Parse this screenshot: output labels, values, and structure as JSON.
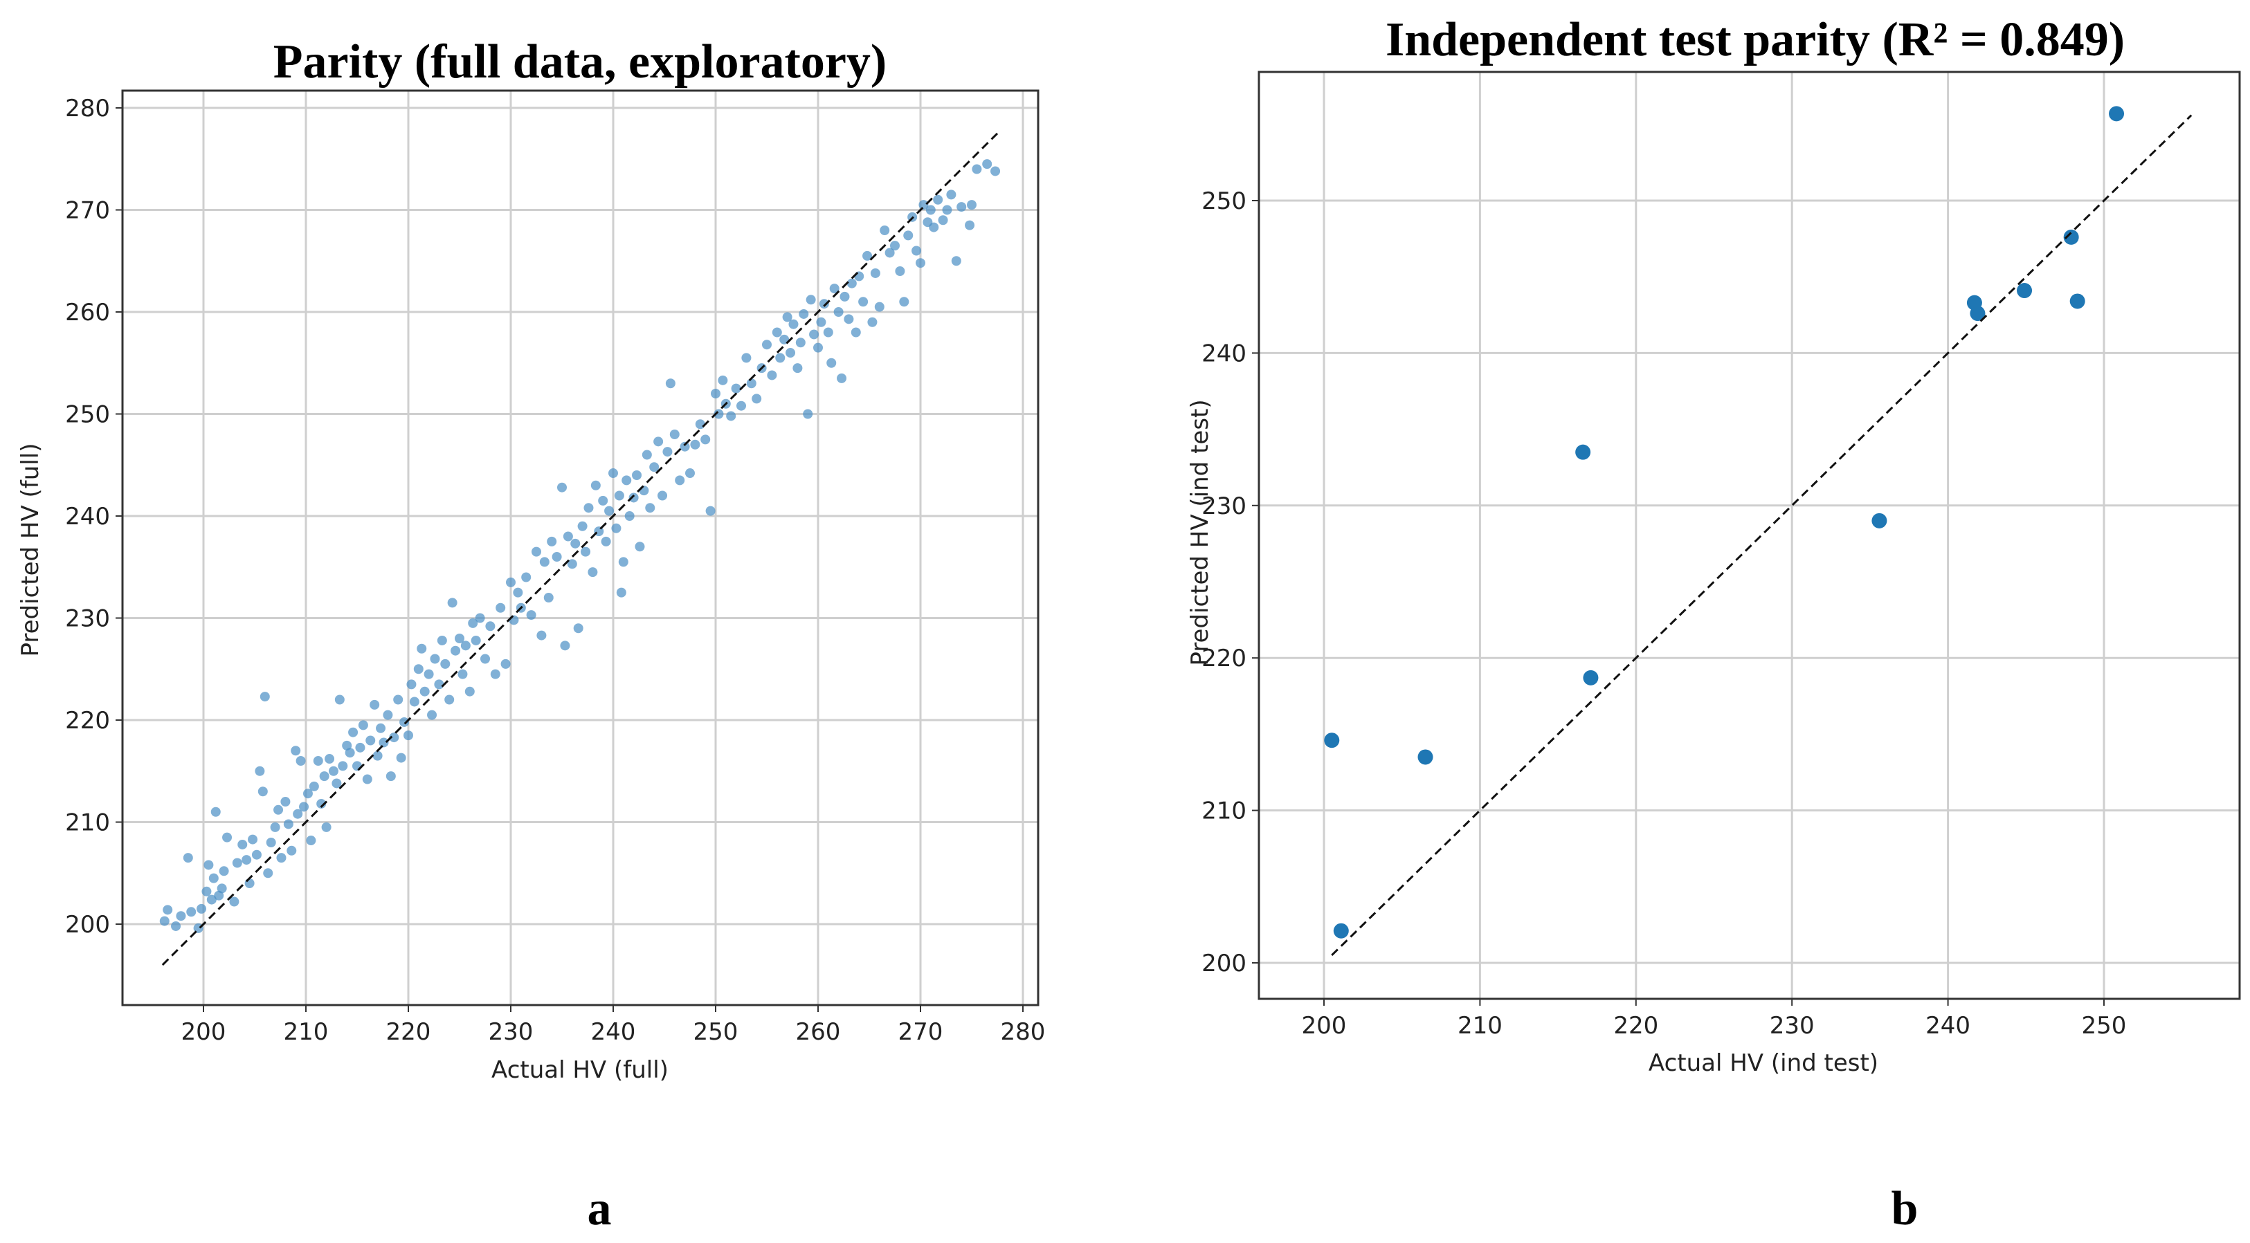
{
  "chart_data": [
    {
      "type": "scatter",
      "panel_label": "a",
      "title": "Parity (full data, exploratory)",
      "xlabel": "Actual HV (full)",
      "ylabel": "Predicted HV (full)",
      "xlim": [
        192,
        282
      ],
      "ylim": [
        192,
        282
      ],
      "xticks": [
        200,
        210,
        220,
        230,
        240,
        250,
        260,
        270,
        280
      ],
      "yticks": [
        200,
        210,
        220,
        230,
        240,
        250,
        260,
        270,
        280
      ],
      "grid": true,
      "reference_line": [
        [
          196,
          196
        ],
        [
          277.5,
          277.5
        ]
      ],
      "marker_color": "#4a8fc4",
      "points": [
        [
          196.2,
          200.3
        ],
        [
          196.5,
          201.4
        ],
        [
          197.3,
          199.8
        ],
        [
          197.8,
          200.8
        ],
        [
          198.5,
          206.5
        ],
        [
          198.8,
          201.2
        ],
        [
          199.5,
          199.6
        ],
        [
          199.8,
          201.5
        ],
        [
          200.3,
          203.2
        ],
        [
          200.5,
          205.8
        ],
        [
          200.8,
          202.4
        ],
        [
          201.0,
          204.5
        ],
        [
          201.2,
          211.0
        ],
        [
          201.5,
          202.8
        ],
        [
          201.8,
          203.5
        ],
        [
          202.0,
          205.2
        ],
        [
          202.3,
          208.5
        ],
        [
          203.0,
          202.2
        ],
        [
          203.3,
          206.0
        ],
        [
          203.8,
          207.8
        ],
        [
          204.2,
          206.3
        ],
        [
          204.5,
          204.0
        ],
        [
          204.8,
          208.3
        ],
        [
          205.2,
          206.8
        ],
        [
          205.5,
          215.0
        ],
        [
          205.8,
          213.0
        ],
        [
          206.0,
          222.3
        ],
        [
          206.3,
          205.0
        ],
        [
          206.6,
          208.0
        ],
        [
          207.0,
          209.5
        ],
        [
          207.3,
          211.2
        ],
        [
          207.6,
          206.5
        ],
        [
          208.0,
          212.0
        ],
        [
          208.3,
          209.8
        ],
        [
          208.6,
          207.2
        ],
        [
          209.0,
          217.0
        ],
        [
          209.2,
          210.8
        ],
        [
          209.5,
          216.0
        ],
        [
          209.8,
          211.5
        ],
        [
          210.2,
          212.8
        ],
        [
          210.5,
          208.2
        ],
        [
          210.8,
          213.5
        ],
        [
          211.2,
          216.0
        ],
        [
          211.5,
          211.8
        ],
        [
          211.8,
          214.5
        ],
        [
          212.0,
          209.5
        ],
        [
          212.3,
          216.2
        ],
        [
          212.7,
          215.0
        ],
        [
          213.0,
          213.8
        ],
        [
          213.3,
          222.0
        ],
        [
          213.6,
          215.5
        ],
        [
          214.0,
          217.5
        ],
        [
          214.3,
          216.8
        ],
        [
          214.6,
          218.8
        ],
        [
          215.0,
          215.5
        ],
        [
          215.3,
          217.3
        ],
        [
          215.6,
          219.5
        ],
        [
          216.0,
          214.2
        ],
        [
          216.3,
          218.0
        ],
        [
          216.7,
          221.5
        ],
        [
          217.0,
          216.5
        ],
        [
          217.3,
          219.2
        ],
        [
          217.6,
          217.8
        ],
        [
          218.0,
          220.5
        ],
        [
          218.3,
          214.5
        ],
        [
          218.6,
          218.3
        ],
        [
          219.0,
          222.0
        ],
        [
          219.3,
          216.3
        ],
        [
          219.6,
          219.8
        ],
        [
          220.0,
          218.5
        ],
        [
          220.3,
          223.5
        ],
        [
          220.6,
          221.8
        ],
        [
          221.0,
          225.0
        ],
        [
          221.3,
          227.0
        ],
        [
          221.6,
          222.8
        ],
        [
          222.0,
          224.5
        ],
        [
          222.3,
          220.5
        ],
        [
          222.6,
          226.0
        ],
        [
          223.0,
          223.5
        ],
        [
          223.3,
          227.8
        ],
        [
          223.6,
          225.5
        ],
        [
          224.0,
          222.0
        ],
        [
          224.3,
          231.5
        ],
        [
          224.6,
          226.8
        ],
        [
          225.0,
          228.0
        ],
        [
          225.3,
          224.5
        ],
        [
          225.6,
          227.3
        ],
        [
          226.0,
          222.8
        ],
        [
          226.3,
          229.5
        ],
        [
          226.6,
          227.8
        ],
        [
          227.0,
          230.0
        ],
        [
          227.5,
          226.0
        ],
        [
          228.0,
          229.2
        ],
        [
          228.5,
          224.5
        ],
        [
          229.0,
          231.0
        ],
        [
          229.5,
          225.5
        ],
        [
          230.0,
          233.5
        ],
        [
          230.3,
          229.8
        ],
        [
          230.7,
          232.5
        ],
        [
          231.0,
          231.0
        ],
        [
          231.5,
          234.0
        ],
        [
          232.0,
          230.3
        ],
        [
          232.5,
          236.5
        ],
        [
          233.0,
          228.3
        ],
        [
          233.3,
          235.5
        ],
        [
          233.7,
          232.0
        ],
        [
          234.0,
          237.5
        ],
        [
          234.5,
          236.0
        ],
        [
          235.0,
          242.8
        ],
        [
          235.3,
          227.3
        ],
        [
          235.6,
          238.0
        ],
        [
          236.0,
          235.3
        ],
        [
          236.3,
          237.3
        ],
        [
          236.6,
          229.0
        ],
        [
          237.0,
          239.0
        ],
        [
          237.3,
          236.5
        ],
        [
          237.6,
          240.8
        ],
        [
          238.0,
          234.5
        ],
        [
          238.3,
          243.0
        ],
        [
          238.6,
          238.5
        ],
        [
          239.0,
          241.5
        ],
        [
          239.3,
          237.5
        ],
        [
          239.6,
          240.5
        ],
        [
          240.0,
          244.2
        ],
        [
          240.3,
          238.8
        ],
        [
          240.6,
          242.0
        ],
        [
          240.8,
          232.5
        ],
        [
          241.0,
          235.5
        ],
        [
          241.3,
          243.5
        ],
        [
          241.6,
          240.0
        ],
        [
          242.0,
          241.8
        ],
        [
          242.3,
          244.0
        ],
        [
          242.6,
          237.0
        ],
        [
          243.0,
          242.5
        ],
        [
          243.3,
          246.0
        ],
        [
          243.6,
          240.8
        ],
        [
          244.0,
          244.8
        ],
        [
          244.4,
          247.3
        ],
        [
          244.8,
          242.0
        ],
        [
          245.3,
          246.3
        ],
        [
          245.6,
          253.0
        ],
        [
          246.0,
          248.0
        ],
        [
          246.5,
          243.5
        ],
        [
          247.0,
          246.8
        ],
        [
          247.5,
          244.2
        ],
        [
          248.0,
          247.0
        ],
        [
          248.5,
          249.0
        ],
        [
          249.0,
          247.5
        ],
        [
          249.5,
          240.5
        ],
        [
          250.0,
          252.0
        ],
        [
          250.3,
          250.0
        ],
        [
          250.7,
          253.3
        ],
        [
          251.0,
          251.0
        ],
        [
          251.5,
          249.8
        ],
        [
          252.0,
          252.5
        ],
        [
          252.5,
          250.8
        ],
        [
          253.0,
          255.5
        ],
        [
          253.5,
          253.0
        ],
        [
          254.0,
          251.5
        ],
        [
          254.5,
          254.5
        ],
        [
          255.0,
          256.8
        ],
        [
          255.5,
          253.8
        ],
        [
          256.0,
          258.0
        ],
        [
          256.3,
          255.5
        ],
        [
          256.7,
          257.3
        ],
        [
          257.0,
          259.5
        ],
        [
          257.3,
          256.0
        ],
        [
          257.6,
          258.8
        ],
        [
          258.0,
          254.5
        ],
        [
          258.3,
          257.0
        ],
        [
          258.6,
          259.8
        ],
        [
          259.0,
          250.0
        ],
        [
          259.3,
          261.2
        ],
        [
          259.6,
          257.8
        ],
        [
          260.0,
          256.5
        ],
        [
          260.3,
          259.0
        ],
        [
          260.6,
          260.8
        ],
        [
          261.0,
          258.0
        ],
        [
          261.3,
          255.0
        ],
        [
          261.6,
          262.3
        ],
        [
          262.0,
          260.0
        ],
        [
          262.3,
          253.5
        ],
        [
          262.6,
          261.5
        ],
        [
          263.0,
          259.3
        ],
        [
          263.3,
          262.8
        ],
        [
          263.7,
          258.0
        ],
        [
          264.0,
          263.5
        ],
        [
          264.4,
          261.0
        ],
        [
          264.8,
          265.5
        ],
        [
          265.3,
          259.0
        ],
        [
          265.6,
          263.8
        ],
        [
          266.0,
          260.5
        ],
        [
          266.5,
          268.0
        ],
        [
          267.0,
          265.8
        ],
        [
          267.5,
          266.5
        ],
        [
          268.0,
          264.0
        ],
        [
          268.4,
          261.0
        ],
        [
          268.8,
          267.5
        ],
        [
          269.2,
          269.3
        ],
        [
          269.6,
          266.0
        ],
        [
          270.0,
          264.8
        ],
        [
          270.3,
          270.5
        ],
        [
          270.7,
          268.8
        ],
        [
          271.0,
          270.0
        ],
        [
          271.3,
          268.3
        ],
        [
          271.7,
          271.0
        ],
        [
          272.2,
          269.0
        ],
        [
          272.6,
          270.0
        ],
        [
          273.0,
          271.5
        ],
        [
          273.5,
          265.0
        ],
        [
          274.0,
          270.3
        ],
        [
          274.8,
          268.5
        ],
        [
          275.0,
          270.5
        ],
        [
          275.5,
          274.0
        ],
        [
          276.5,
          274.5
        ],
        [
          277.3,
          273.8
        ]
      ]
    },
    {
      "type": "scatter",
      "panel_label": "b",
      "title": "Independent test parity (R² = 0.849)",
      "xlabel": "Actual HV (ind test)",
      "ylabel": "Predicted HV (ind test)",
      "xlim": [
        197.7,
        258.4
      ],
      "ylim": [
        197.8,
        258.5
      ],
      "xticks": [
        200,
        210,
        220,
        230,
        240,
        250
      ],
      "yticks": [
        200,
        210,
        220,
        230,
        240,
        250
      ],
      "grid": true,
      "reference_line": [
        [
          200.5,
          200.5
        ],
        [
          255.6,
          255.6
        ]
      ],
      "marker_color": "#1f77b4",
      "points": [
        [
          200.5,
          214.6
        ],
        [
          201.1,
          202.1
        ],
        [
          206.5,
          213.5
        ],
        [
          216.6,
          233.5
        ],
        [
          217.1,
          218.7
        ],
        [
          235.6,
          229.0
        ],
        [
          241.7,
          243.3
        ],
        [
          241.9,
          242.6
        ],
        [
          244.9,
          244.1
        ],
        [
          247.9,
          247.6
        ],
        [
          248.3,
          243.4
        ],
        [
          250.8,
          255.7
        ]
      ]
    }
  ]
}
